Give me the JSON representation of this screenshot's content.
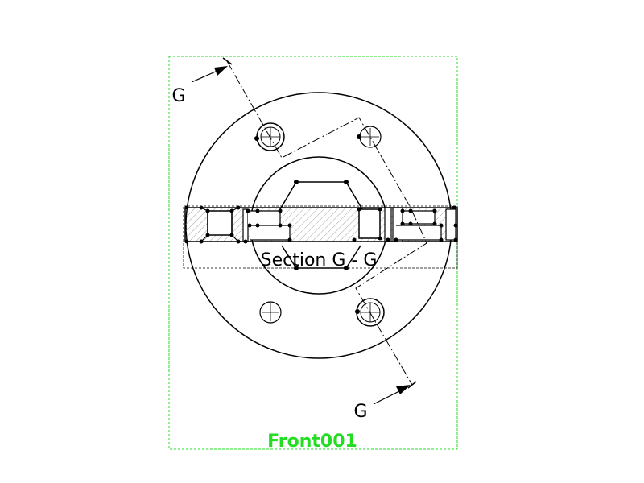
{
  "drawing": {
    "view_label": "Front001",
    "section_title": "Section G - G",
    "cut_label_top": "G",
    "cut_label_bottom": "G"
  },
  "colors": {
    "view_frame": "#22dd22",
    "lines": "#000000",
    "hatch": "#888888"
  }
}
